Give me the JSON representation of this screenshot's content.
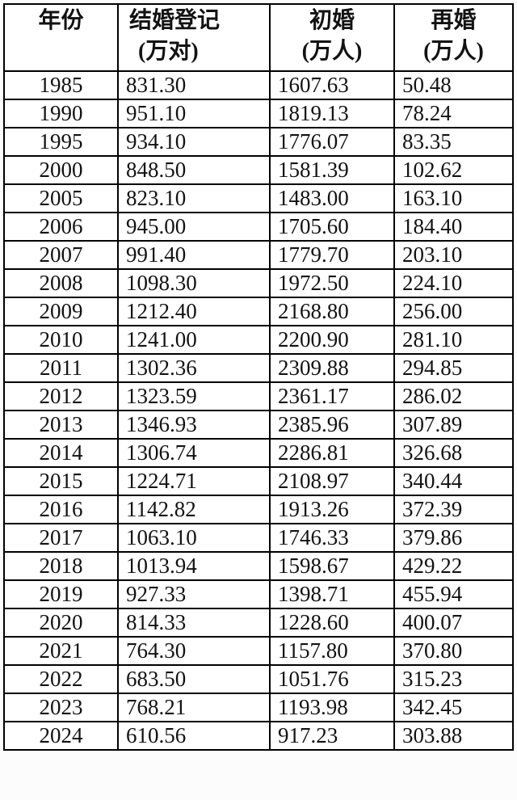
{
  "colors": {
    "border": "#000000",
    "text": "#121212",
    "cell_background": "#ffffff",
    "page_background": "#fcfcfc"
  },
  "table": {
    "columns": [
      {
        "label": "年份",
        "unit": ""
      },
      {
        "label": "结婚登记",
        "unit": "(万对)"
      },
      {
        "label": "初婚",
        "unit": "(万人)"
      },
      {
        "label": "再婚",
        "unit": "(万人)"
      }
    ],
    "cell_names": [
      "year-cell",
      "marriage-registrations-cell",
      "first-marriage-cell",
      "remarriage-cell"
    ],
    "rows": [
      [
        "1985",
        "831.30",
        "1607.63",
        "50.48"
      ],
      [
        "1990",
        "951.10",
        "1819.13",
        "78.24"
      ],
      [
        "1995",
        "934.10",
        "1776.07",
        "83.35"
      ],
      [
        "2000",
        "848.50",
        "1581.39",
        "102.62"
      ],
      [
        "2005",
        "823.10",
        "1483.00",
        "163.10"
      ],
      [
        "2006",
        "945.00",
        "1705.60",
        "184.40"
      ],
      [
        "2007",
        "991.40",
        "1779.70",
        "203.10"
      ],
      [
        "2008",
        "1098.30",
        "1972.50",
        "224.10"
      ],
      [
        "2009",
        "1212.40",
        "2168.80",
        "256.00"
      ],
      [
        "2010",
        "1241.00",
        "2200.90",
        "281.10"
      ],
      [
        "2011",
        "1302.36",
        "2309.88",
        "294.85"
      ],
      [
        "2012",
        "1323.59",
        "2361.17",
        "286.02"
      ],
      [
        "2013",
        "1346.93",
        "2385.96",
        "307.89"
      ],
      [
        "2014",
        "1306.74",
        "2286.81",
        "326.68"
      ],
      [
        "2015",
        "1224.71",
        "2108.97",
        "340.44"
      ],
      [
        "2016",
        "1142.82",
        "1913.26",
        "372.39"
      ],
      [
        "2017",
        "1063.10",
        "1746.33",
        "379.86"
      ],
      [
        "2018",
        "1013.94",
        "1598.67",
        "429.22"
      ],
      [
        "2019",
        "927.33",
        "1398.71",
        "455.94"
      ],
      [
        "2020",
        "814.33",
        "1228.60",
        "400.07"
      ],
      [
        "2021",
        "764.30",
        "1157.80",
        "370.80"
      ],
      [
        "2022",
        "683.50",
        "1051.76",
        "315.23"
      ],
      [
        "2023",
        "768.21",
        "1193.98",
        "342.45"
      ],
      [
        "2024",
        "610.56",
        "917.23",
        "303.88"
      ]
    ]
  },
  "chart_data": {
    "type": "table",
    "title": "",
    "columns": [
      "年份",
      "结婚登记(万对)",
      "初婚(万人)",
      "再婚(万人)"
    ],
    "categories": [
      1985,
      1990,
      1995,
      2000,
      2005,
      2006,
      2007,
      2008,
      2009,
      2010,
      2011,
      2012,
      2013,
      2014,
      2015,
      2016,
      2017,
      2018,
      2019,
      2020,
      2021,
      2022,
      2023,
      2024
    ],
    "series": [
      {
        "name": "结婚登记(万对)",
        "values": [
          831.3,
          951.1,
          934.1,
          848.5,
          823.1,
          945.0,
          991.4,
          1098.3,
          1212.4,
          1241.0,
          1302.36,
          1323.59,
          1346.93,
          1306.74,
          1224.71,
          1142.82,
          1063.1,
          1013.94,
          927.33,
          814.33,
          764.3,
          683.5,
          768.21,
          610.56
        ]
      },
      {
        "name": "初婚(万人)",
        "values": [
          1607.63,
          1819.13,
          1776.07,
          1581.39,
          1483.0,
          1705.6,
          1779.7,
          1972.5,
          2168.8,
          2200.9,
          2309.88,
          2361.17,
          2385.96,
          2286.81,
          2108.97,
          1913.26,
          1746.33,
          1598.67,
          1398.71,
          1228.6,
          1157.8,
          1051.76,
          1193.98,
          917.23
        ]
      },
      {
        "name": "再婚(万人)",
        "values": [
          50.48,
          78.24,
          83.35,
          102.62,
          163.1,
          184.4,
          203.1,
          224.1,
          256.0,
          281.1,
          294.85,
          286.02,
          307.89,
          326.68,
          340.44,
          372.39,
          379.86,
          429.22,
          455.94,
          400.07,
          370.8,
          315.23,
          342.45,
          303.88
        ]
      }
    ],
    "layout": {
      "grid": "full-borders",
      "header_rows": 1,
      "data_rows": 24
    }
  }
}
